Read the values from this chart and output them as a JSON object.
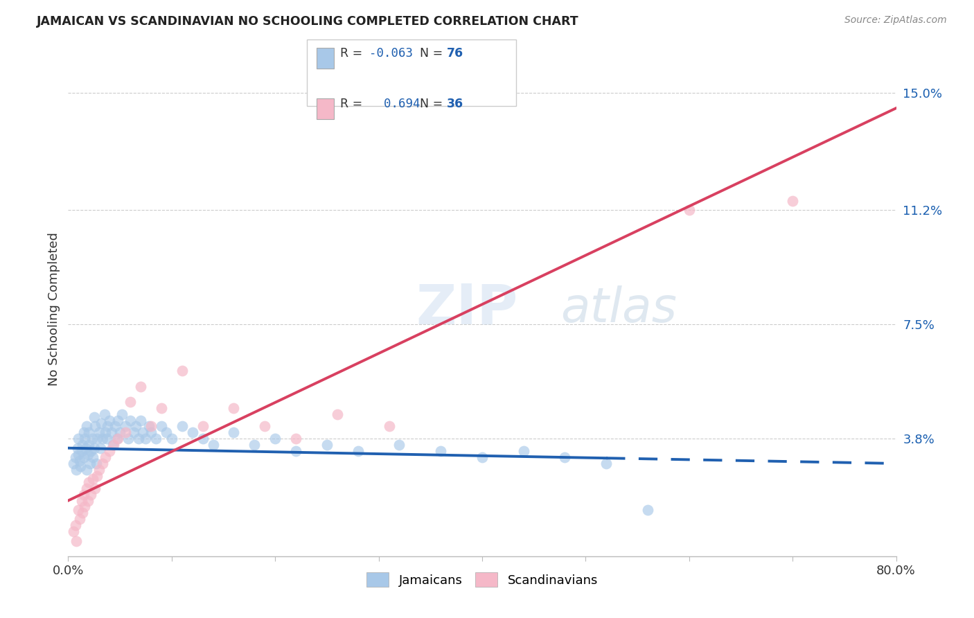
{
  "title": "JAMAICAN VS SCANDINAVIAN NO SCHOOLING COMPLETED CORRELATION CHART",
  "source": "Source: ZipAtlas.com",
  "ylabel": "No Schooling Completed",
  "xlim": [
    0.0,
    0.8
  ],
  "ylim": [
    0.0,
    0.16
  ],
  "watermark_line1": "ZIP",
  "watermark_line2": "atlas",
  "legend_r_blue": "-0.063",
  "legend_n_blue": "76",
  "legend_r_pink": "0.694",
  "legend_n_pink": "36",
  "blue_scatter_color": "#a8c8e8",
  "pink_scatter_color": "#f5b8c8",
  "trend_blue_color": "#2060b0",
  "trend_pink_color": "#d84060",
  "background_color": "#ffffff",
  "jamaicans_x": [
    0.005,
    0.007,
    0.008,
    0.009,
    0.01,
    0.01,
    0.011,
    0.012,
    0.013,
    0.014,
    0.015,
    0.015,
    0.016,
    0.017,
    0.018,
    0.018,
    0.019,
    0.02,
    0.02,
    0.021,
    0.022,
    0.023,
    0.024,
    0.025,
    0.025,
    0.026,
    0.027,
    0.028,
    0.03,
    0.031,
    0.032,
    0.033,
    0.035,
    0.036,
    0.037,
    0.038,
    0.04,
    0.042,
    0.043,
    0.045,
    0.047,
    0.048,
    0.05,
    0.052,
    0.055,
    0.058,
    0.06,
    0.063,
    0.065,
    0.068,
    0.07,
    0.072,
    0.075,
    0.078,
    0.08,
    0.085,
    0.09,
    0.095,
    0.1,
    0.11,
    0.12,
    0.13,
    0.14,
    0.16,
    0.18,
    0.2,
    0.22,
    0.25,
    0.28,
    0.32,
    0.36,
    0.4,
    0.44,
    0.48,
    0.52,
    0.56
  ],
  "jamaicans_y": [
    0.03,
    0.032,
    0.028,
    0.035,
    0.033,
    0.038,
    0.031,
    0.029,
    0.034,
    0.036,
    0.032,
    0.04,
    0.038,
    0.035,
    0.042,
    0.028,
    0.033,
    0.036,
    0.04,
    0.03,
    0.034,
    0.038,
    0.032,
    0.045,
    0.035,
    0.042,
    0.03,
    0.038,
    0.04,
    0.035,
    0.043,
    0.038,
    0.046,
    0.04,
    0.038,
    0.042,
    0.044,
    0.04,
    0.036,
    0.042,
    0.038,
    0.044,
    0.04,
    0.046,
    0.042,
    0.038,
    0.044,
    0.04,
    0.042,
    0.038,
    0.044,
    0.04,
    0.038,
    0.042,
    0.04,
    0.038,
    0.042,
    0.04,
    0.038,
    0.042,
    0.04,
    0.038,
    0.036,
    0.04,
    0.036,
    0.038,
    0.034,
    0.036,
    0.034,
    0.036,
    0.034,
    0.032,
    0.034,
    0.032,
    0.03,
    0.015
  ],
  "scandinavians_x": [
    0.005,
    0.007,
    0.008,
    0.01,
    0.011,
    0.013,
    0.014,
    0.015,
    0.016,
    0.018,
    0.019,
    0.02,
    0.022,
    0.024,
    0.026,
    0.028,
    0.03,
    0.033,
    0.036,
    0.04,
    0.044,
    0.048,
    0.055,
    0.06,
    0.07,
    0.08,
    0.09,
    0.11,
    0.13,
    0.16,
    0.19,
    0.22,
    0.26,
    0.31,
    0.6,
    0.7
  ],
  "scandinavians_y": [
    0.008,
    0.01,
    0.005,
    0.015,
    0.012,
    0.018,
    0.014,
    0.02,
    0.016,
    0.022,
    0.018,
    0.024,
    0.02,
    0.025,
    0.022,
    0.026,
    0.028,
    0.03,
    0.032,
    0.034,
    0.036,
    0.038,
    0.04,
    0.05,
    0.055,
    0.042,
    0.048,
    0.06,
    0.042,
    0.048,
    0.042,
    0.038,
    0.046,
    0.042,
    0.112,
    0.115
  ],
  "blue_trend_x_solid_end": 0.52,
  "blue_trend_line_start_y": 0.035,
  "blue_trend_line_end_y": 0.03,
  "pink_trend_line_start_y": 0.018,
  "pink_trend_line_end_y": 0.145
}
